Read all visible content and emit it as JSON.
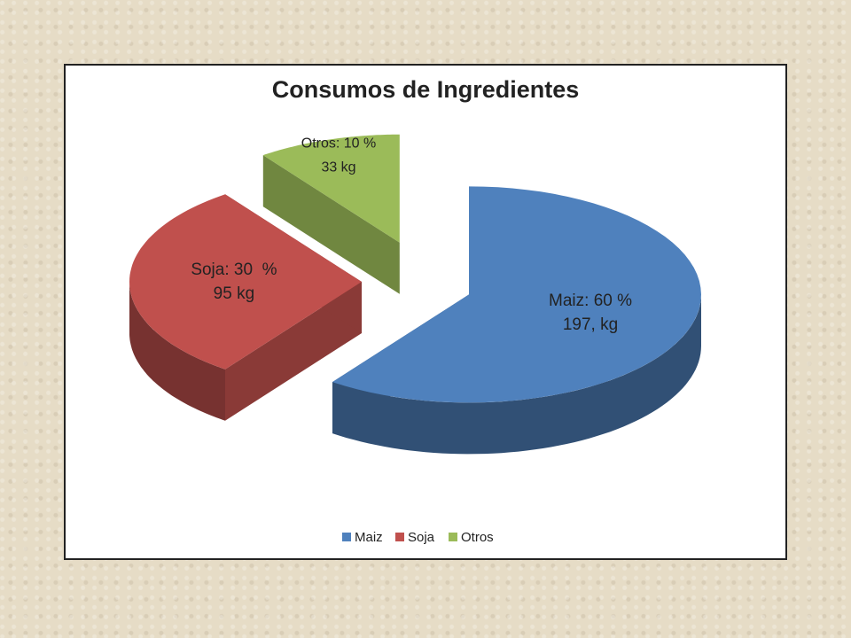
{
  "chart_data": {
    "type": "pie",
    "title": "Consumos de Ingredientes",
    "categories": [
      "Maiz",
      "Soja",
      "Otros"
    ],
    "values": [
      60,
      30,
      10
    ],
    "value_labels": [
      "Maiz: 60 %",
      "Soja: 30  %",
      "Otros: 10 %"
    ],
    "amount_labels": [
      "197, kg",
      "95 kg",
      "33 kg"
    ],
    "colors": [
      "#4f81bd",
      "#c0504d",
      "#9bbb59"
    ],
    "legend": "bottom"
  }
}
